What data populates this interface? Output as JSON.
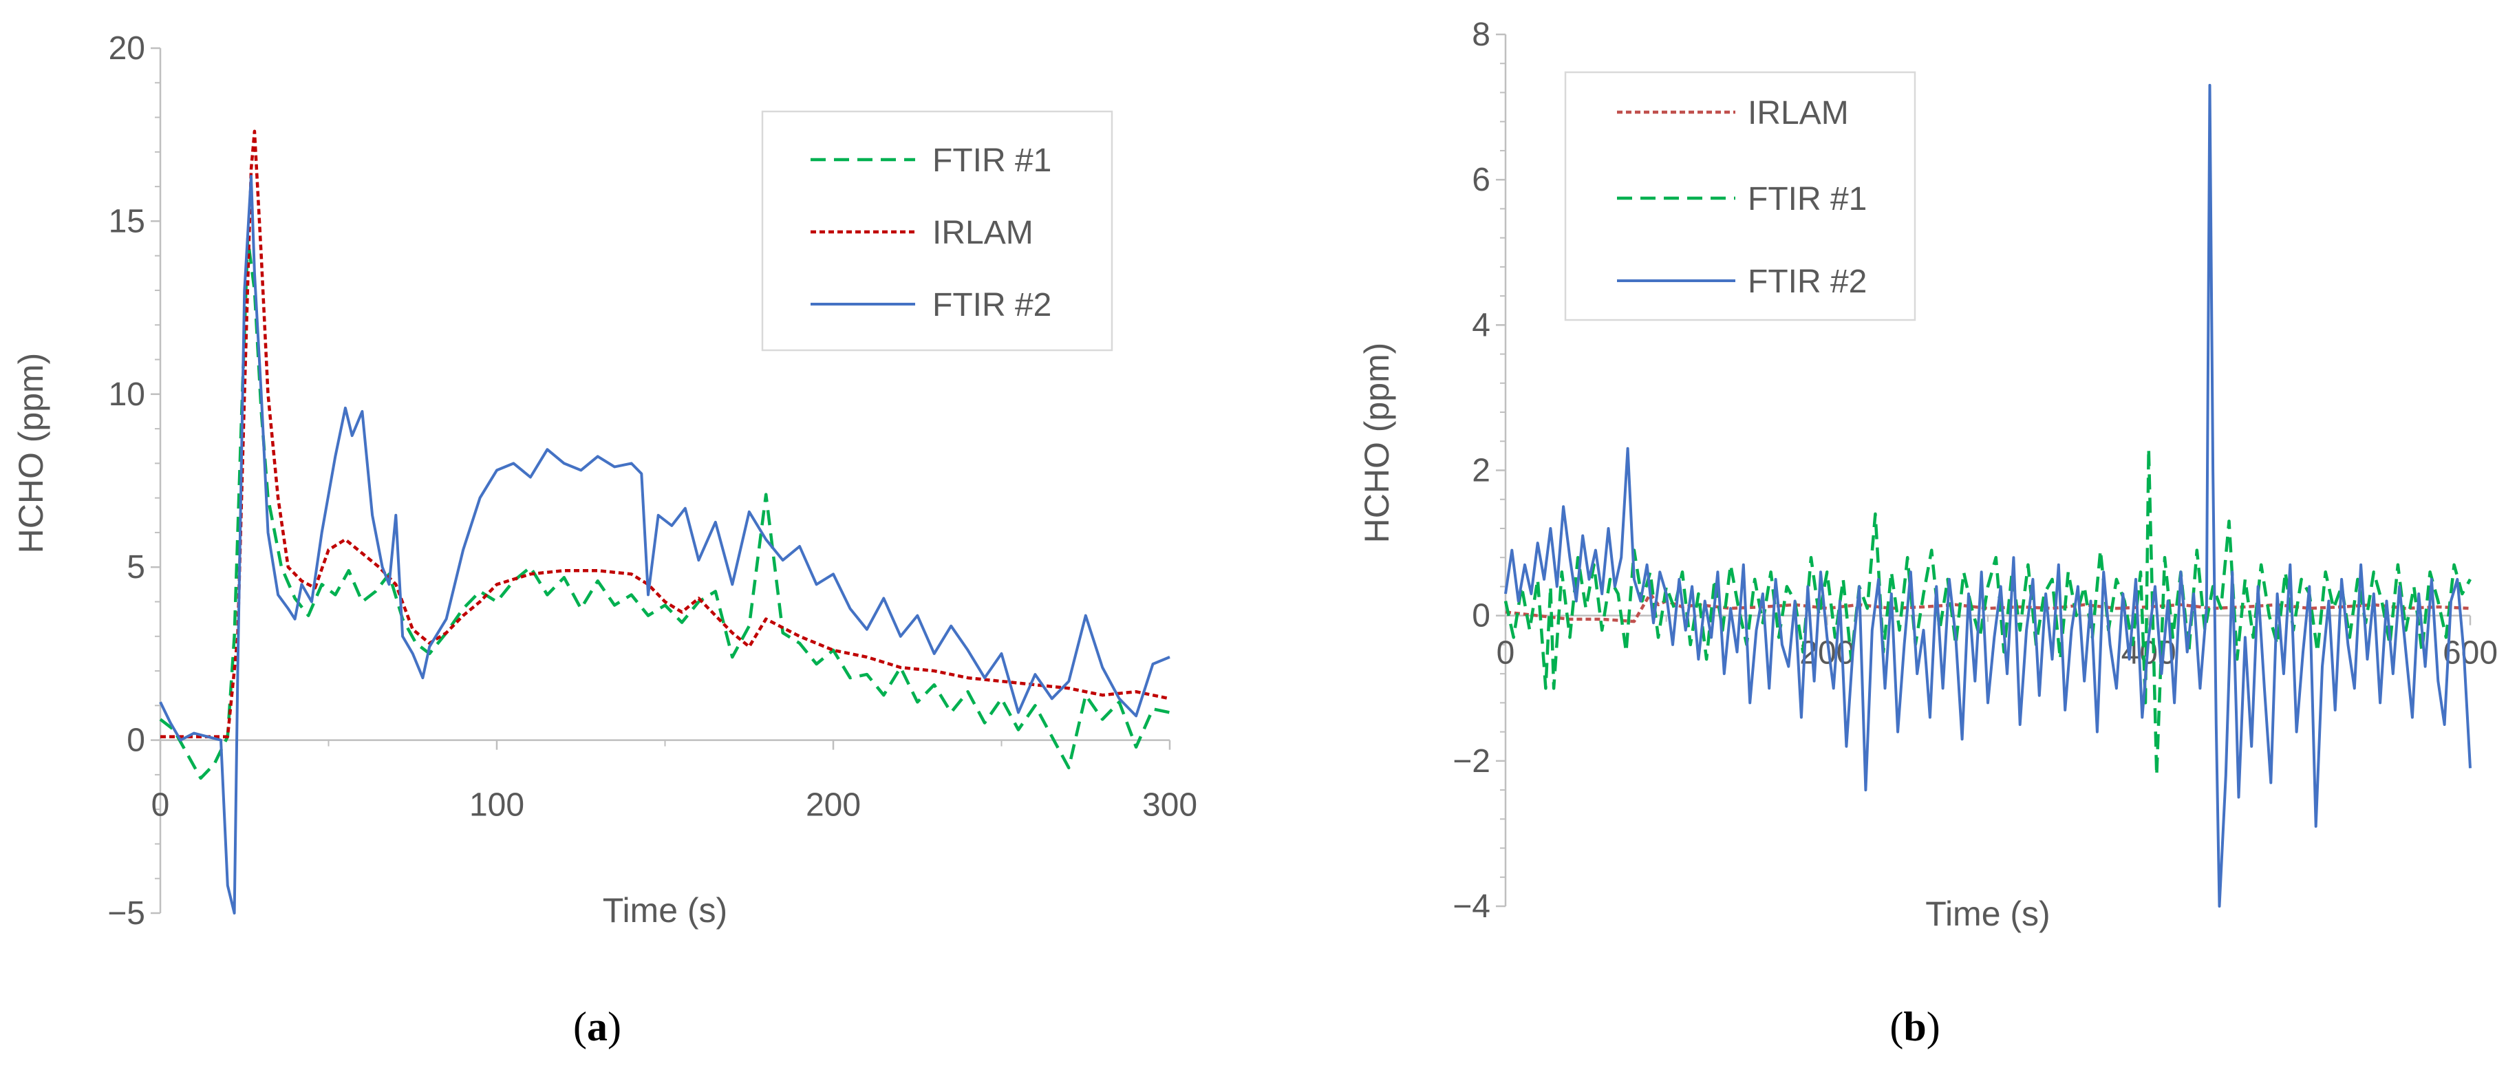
{
  "chart_data": [
    {
      "type": "line",
      "panel": "(a)",
      "panel_letter": "a",
      "xlabel": "Time (s)",
      "ylabel": "HCHO (ppm)",
      "xlim": [
        0,
        300
      ],
      "ylim": [
        -5,
        20
      ],
      "xticks": [
        0,
        100,
        200,
        300
      ],
      "xtick_labels": [
        "0",
        "100",
        "200",
        "300"
      ],
      "yticks": [
        -5,
        0,
        5,
        10,
        15,
        20
      ],
      "ytick_labels": [
        "−5",
        "0",
        "5",
        "10",
        "15",
        "20"
      ],
      "legend_position": "top-right",
      "legend": [
        "FTIR #1",
        "IRLAM",
        "FTIR #2"
      ],
      "series": [
        {
          "name": "FTIR #1",
          "color": "#00b050",
          "dash": "dashed",
          "x": [
            0,
            4,
            8,
            12,
            16,
            20,
            22,
            24,
            26,
            28,
            30,
            32,
            36,
            40,
            44,
            48,
            52,
            56,
            60,
            64,
            68,
            72,
            76,
            80,
            85,
            90,
            95,
            100,
            105,
            110,
            115,
            120,
            125,
            130,
            135,
            140,
            145,
            150,
            155,
            160,
            165,
            170,
            175,
            180,
            185,
            190,
            195,
            200,
            205,
            210,
            215,
            220,
            225,
            230,
            235,
            240,
            245,
            250,
            255,
            260,
            265,
            270,
            275,
            280,
            285,
            290,
            295,
            300
          ],
          "y": [
            0.6,
            0.3,
            -0.4,
            -1.1,
            -0.7,
            0.1,
            3.0,
            9.0,
            14.5,
            13.0,
            9.5,
            7.0,
            5.0,
            4.1,
            3.6,
            4.5,
            4.2,
            4.9,
            4.0,
            4.3,
            4.8,
            3.5,
            2.8,
            2.5,
            3.1,
            3.8,
            4.3,
            4.0,
            4.6,
            5.0,
            4.2,
            4.7,
            3.8,
            4.6,
            3.9,
            4.2,
            3.6,
            3.9,
            3.4,
            4.0,
            4.3,
            2.4,
            3.3,
            7.1,
            3.1,
            2.8,
            2.2,
            2.6,
            1.8,
            1.9,
            1.3,
            2.1,
            1.1,
            1.6,
            0.8,
            1.4,
            0.5,
            1.2,
            0.3,
            1.0,
            0.1,
            -0.8,
            1.3,
            0.6,
            1.1,
            -0.2,
            0.9,
            0.8
          ]
        },
        {
          "name": "IRLAM",
          "color": "#c00000",
          "dash": "dotted",
          "x": [
            0,
            10,
            20,
            23,
            25,
            27,
            28,
            30,
            32,
            35,
            38,
            42,
            46,
            50,
            55,
            60,
            65,
            70,
            75,
            80,
            85,
            90,
            95,
            100,
            110,
            120,
            130,
            140,
            145,
            150,
            155,
            160,
            165,
            170,
            175,
            180,
            190,
            200,
            210,
            220,
            230,
            240,
            250,
            260,
            270,
            280,
            290,
            300
          ],
          "y": [
            0.1,
            0.1,
            0.1,
            3.0,
            10.0,
            16.5,
            17.6,
            14.0,
            10.0,
            7.0,
            5.0,
            4.6,
            4.4,
            5.5,
            5.8,
            5.4,
            5.0,
            4.5,
            3.2,
            2.8,
            3.1,
            3.6,
            4.0,
            4.5,
            4.8,
            4.9,
            4.9,
            4.8,
            4.5,
            4.0,
            3.7,
            4.1,
            3.6,
            3.1,
            2.7,
            3.5,
            3.0,
            2.6,
            2.4,
            2.1,
            2.0,
            1.8,
            1.7,
            1.6,
            1.5,
            1.3,
            1.4,
            1.2
          ]
        },
        {
          "name": "FTIR #2",
          "color": "#4472c4",
          "dash": "solid",
          "x": [
            0,
            3,
            6,
            10,
            14,
            18,
            20,
            22,
            23,
            25,
            27,
            28,
            30,
            32,
            35,
            38,
            40,
            42,
            45,
            48,
            52,
            55,
            57,
            60,
            63,
            66,
            68,
            70,
            72,
            75,
            78,
            80,
            85,
            90,
            95,
            100,
            105,
            110,
            115,
            120,
            125,
            130,
            135,
            140,
            143,
            145,
            148,
            152,
            156,
            160,
            165,
            170,
            175,
            180,
            185,
            190,
            195,
            200,
            205,
            210,
            215,
            220,
            225,
            230,
            235,
            240,
            245,
            250,
            255,
            260,
            265,
            270,
            275,
            280,
            285,
            290,
            295,
            300
          ],
          "y": [
            1.1,
            0.5,
            0.0,
            0.2,
            0.1,
            0.0,
            -4.2,
            -5.0,
            2.0,
            13.0,
            16.3,
            13.5,
            10.0,
            6.0,
            4.2,
            3.8,
            3.5,
            4.5,
            4.0,
            6.0,
            8.2,
            9.6,
            8.8,
            9.5,
            6.5,
            5.0,
            4.5,
            6.5,
            3.0,
            2.5,
            1.8,
            2.7,
            3.5,
            5.5,
            7.0,
            7.8,
            8.0,
            7.6,
            8.4,
            8.0,
            7.8,
            8.2,
            7.9,
            8.0,
            7.7,
            4.2,
            6.5,
            6.2,
            6.7,
            5.2,
            6.3,
            4.5,
            6.6,
            5.8,
            5.2,
            5.6,
            4.5,
            4.8,
            3.8,
            3.2,
            4.1,
            3.0,
            3.6,
            2.5,
            3.3,
            2.6,
            1.8,
            2.5,
            0.8,
            1.9,
            1.2,
            1.7,
            3.6,
            2.1,
            1.2,
            0.7,
            2.2,
            2.4
          ]
        }
      ]
    },
    {
      "type": "line",
      "panel": "(b)",
      "panel_letter": "b",
      "xlabel": "Time (s)",
      "ylabel": "HCHO (ppm)",
      "xlim": [
        0,
        600
      ],
      "ylim": [
        -4,
        8
      ],
      "xticks": [
        0,
        200,
        400,
        600
      ],
      "xtick_labels": [
        "0",
        "200",
        "400",
        "600"
      ],
      "yticks": [
        -4,
        -2,
        0,
        2,
        4,
        6,
        8
      ],
      "ytick_labels": [
        "−4",
        "−2",
        "0",
        "2",
        "4",
        "6",
        "8"
      ],
      "legend_position": "top-left",
      "legend": [
        "IRLAM",
        "FTIR #1",
        "FTIR #2"
      ],
      "series": [
        {
          "name": "IRLAM",
          "color": "#c0504d",
          "dash": "dotted",
          "x": [
            0,
            20,
            40,
            60,
            80,
            90,
            95,
            100,
            110,
            120,
            140,
            160,
            180,
            200,
            220,
            240,
            260,
            280,
            300,
            320,
            340,
            360,
            380,
            400,
            420,
            440,
            460,
            480,
            500,
            520,
            540,
            560,
            580,
            600
          ],
          "y": [
            0.05,
            0.0,
            -0.05,
            -0.05,
            -0.08,
            0.3,
            0.15,
            0.2,
            0.12,
            0.15,
            0.1,
            0.12,
            0.15,
            0.1,
            0.15,
            0.1,
            0.12,
            0.15,
            0.1,
            0.12,
            0.1,
            0.15,
            0.1,
            0.12,
            0.15,
            0.1,
            0.12,
            0.15,
            0.1,
            0.12,
            0.15,
            0.1,
            0.12,
            0.1
          ]
        },
        {
          "name": "FTIR #1",
          "color": "#00b050",
          "dash": "dashed",
          "x": [
            0,
            5,
            10,
            15,
            20,
            25,
            28,
            30,
            35,
            40,
            45,
            50,
            55,
            60,
            65,
            70,
            75,
            80,
            85,
            90,
            95,
            100,
            105,
            110,
            115,
            120,
            125,
            130,
            135,
            140,
            145,
            150,
            155,
            160,
            165,
            170,
            175,
            180,
            185,
            190,
            195,
            200,
            205,
            210,
            215,
            220,
            225,
            230,
            235,
            240,
            245,
            250,
            255,
            260,
            265,
            270,
            275,
            280,
            285,
            290,
            295,
            300,
            305,
            310,
            315,
            320,
            325,
            330,
            335,
            340,
            345,
            350,
            355,
            360,
            365,
            370,
            375,
            380,
            385,
            390,
            395,
            398,
            400,
            402,
            405,
            410,
            415,
            420,
            425,
            430,
            435,
            440,
            445,
            450,
            455,
            460,
            465,
            470,
            475,
            480,
            485,
            490,
            495,
            500,
            505,
            510,
            515,
            520,
            525,
            530,
            535,
            540,
            545,
            550,
            555,
            560,
            565,
            570,
            575,
            580,
            585,
            590,
            595,
            600
          ],
          "y": [
            0.2,
            -0.3,
            0.4,
            -0.2,
            0.5,
            -1.0,
            0.4,
            -1.0,
            0.6,
            -0.3,
            0.8,
            0.1,
            0.7,
            -0.2,
            0.5,
            0.3,
            -0.5,
            0.9,
            0.2,
            0.6,
            -0.3,
            0.4,
            0.1,
            0.6,
            -0.4,
            0.3,
            -0.6,
            0.5,
            -0.2,
            0.7,
            0.1,
            -0.4,
            0.5,
            -0.1,
            0.6,
            -0.3,
            0.4,
            0.2,
            -0.5,
            0.8,
            0.0,
            0.6,
            -0.3,
            0.5,
            -0.6,
            0.4,
            0.1,
            1.4,
            -0.5,
            0.6,
            -0.2,
            0.8,
            -0.4,
            0.3,
            0.9,
            -0.2,
            0.5,
            -0.4,
            0.6,
            0.1,
            -0.3,
            0.4,
            0.8,
            -0.5,
            0.6,
            -0.2,
            0.7,
            -0.4,
            0.3,
            0.5,
            -0.6,
            0.6,
            0.0,
            0.4,
            -0.3,
            0.9,
            -0.2,
            0.5,
            0.2,
            -0.4,
            0.6,
            -1.2,
            2.3,
            0.5,
            -2.2,
            0.8,
            -0.3,
            0.6,
            -0.5,
            0.9,
            -0.2,
            0.4,
            0.1,
            1.3,
            -0.6,
            0.5,
            -0.3,
            0.7,
            0.0,
            -0.4,
            0.6,
            -0.2,
            0.5,
            0.3,
            -0.5,
            0.6,
            0.1,
            0.4,
            -0.3,
            0.5,
            -0.1,
            0.6,
            0.2,
            -0.4,
            0.7,
            -0.2,
            0.4,
            -0.5,
            0.6,
            0.2,
            -0.3,
            0.7,
            0.3,
            0.5
          ]
        },
        {
          "name": "FTIR #2",
          "color": "#4472c4",
          "dash": "solid",
          "x": [
            0,
            4,
            8,
            12,
            16,
            20,
            24,
            28,
            32,
            36,
            40,
            44,
            48,
            52,
            56,
            60,
            64,
            68,
            72,
            76,
            80,
            84,
            88,
            92,
            96,
            100,
            104,
            108,
            112,
            116,
            120,
            124,
            128,
            132,
            136,
            140,
            144,
            148,
            152,
            156,
            160,
            164,
            168,
            172,
            176,
            180,
            184,
            188,
            192,
            196,
            200,
            204,
            208,
            212,
            216,
            220,
            224,
            228,
            232,
            236,
            240,
            244,
            248,
            252,
            256,
            260,
            264,
            268,
            272,
            276,
            280,
            284,
            288,
            292,
            296,
            300,
            304,
            308,
            312,
            316,
            320,
            324,
            328,
            332,
            336,
            340,
            344,
            348,
            352,
            356,
            360,
            364,
            368,
            372,
            376,
            380,
            384,
            388,
            392,
            396,
            400,
            404,
            408,
            412,
            416,
            420,
            424,
            428,
            432,
            436,
            438,
            440,
            442,
            444,
            448,
            452,
            456,
            460,
            464,
            468,
            472,
            476,
            480,
            484,
            488,
            492,
            496,
            500,
            504,
            508,
            512,
            516,
            520,
            524,
            528,
            532,
            536,
            540,
            544,
            548,
            552,
            556,
            560,
            564,
            568,
            572,
            576,
            580,
            584,
            588,
            592,
            596,
            600
          ],
          "y": [
            0.3,
            0.9,
            0.2,
            0.7,
            0.3,
            1.0,
            0.5,
            1.2,
            0.4,
            1.5,
            0.8,
            0.2,
            1.1,
            0.5,
            0.9,
            0.3,
            1.2,
            0.4,
            0.8,
            2.3,
            0.5,
            0.2,
            0.7,
            -0.1,
            0.6,
            0.3,
            -0.4,
            0.5,
            -0.2,
            0.4,
            -0.6,
            0.2,
            -0.3,
            0.6,
            -0.8,
            0.1,
            -0.5,
            0.7,
            -1.2,
            -0.2,
            0.3,
            -1.0,
            0.5,
            -0.4,
            -0.7,
            0.2,
            -1.4,
            0.4,
            -0.9,
            0.6,
            -0.3,
            -1.0,
            0.2,
            -1.8,
            -0.5,
            0.4,
            -2.4,
            -0.2,
            0.5,
            -1.0,
            0.3,
            -1.6,
            -0.4,
            0.6,
            -0.8,
            -0.2,
            -1.4,
            0.4,
            -1.0,
            0.5,
            -0.3,
            -1.7,
            0.3,
            -0.9,
            0.6,
            -1.2,
            -0.3,
            0.4,
            -0.8,
            0.8,
            -1.5,
            -0.2,
            0.5,
            -1.1,
            0.3,
            -0.6,
            0.7,
            -1.3,
            -0.2,
            0.4,
            -0.9,
            0.2,
            -1.6,
            0.6,
            -0.4,
            -1.0,
            0.3,
            -0.6,
            0.5,
            -1.4,
            -0.3,
            0.4,
            -0.8,
            0.2,
            -1.2,
            0.6,
            -0.5,
            0.3,
            -1.0,
            0.1,
            7.3,
            2.0,
            -1.5,
            -4.0,
            -2.2,
            0.6,
            -2.5,
            -0.3,
            -1.8,
            0.4,
            -1.0,
            -2.3,
            0.3,
            -0.8,
            0.7,
            -1.6,
            -0.5,
            0.4,
            -2.9,
            -0.7,
            0.2,
            -1.3,
            0.5,
            -0.4,
            -1.0,
            0.7,
            -0.6,
            0.3,
            -1.2,
            0.2,
            -0.8,
            0.4,
            -0.5,
            -1.4,
            0.3,
            -0.7,
            0.5,
            -0.9,
            -1.5,
            0.2,
            0.5,
            -0.5,
            -2.1
          ]
        }
      ]
    }
  ]
}
